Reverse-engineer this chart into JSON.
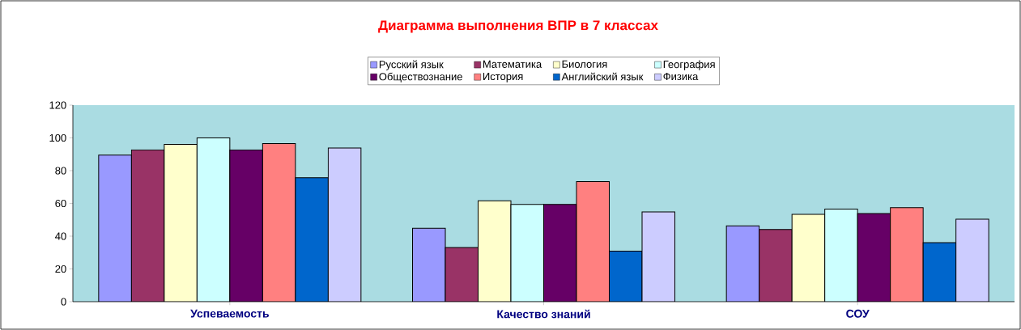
{
  "chart_data": {
    "type": "bar",
    "title": "Диаграмма выполнения ВПР в 7 классах",
    "categories": [
      "Успеваемость",
      "Качество знаний",
      "СОУ"
    ],
    "series": [
      {
        "name": "Русский язык",
        "color": "#9999ff",
        "values": [
          89.5,
          44.8,
          46.3
        ]
      },
      {
        "name": "Математика",
        "color": "#993366",
        "values": [
          92.7,
          33.1,
          44.1
        ]
      },
      {
        "name": "Биология",
        "color": "#ffffcc",
        "values": [
          96.1,
          61.6,
          53.3
        ]
      },
      {
        "name": "География",
        "color": "#ccffff",
        "values": [
          100,
          59.4,
          56.5
        ]
      },
      {
        "name": "Обществознание",
        "color": "#660066",
        "values": [
          92.7,
          59.4,
          53.8
        ]
      },
      {
        "name": "История",
        "color": "#ff8080",
        "values": [
          96.6,
          73.3,
          57.4
        ]
      },
      {
        "name": "Английский язык",
        "color": "#0066cc",
        "values": [
          75.7,
          30.9,
          36.0
        ]
      },
      {
        "name": "Физика",
        "color": "#ccccff",
        "values": [
          93.8,
          54.8,
          50.4
        ]
      }
    ],
    "ylim": [
      0,
      120
    ],
    "yticks": [
      0,
      20,
      40,
      60,
      80,
      100,
      120
    ],
    "grid": false,
    "legend": "top"
  }
}
